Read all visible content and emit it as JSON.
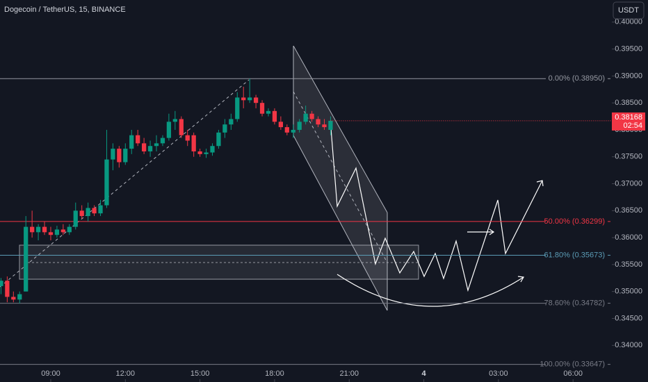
{
  "chart_data": {
    "type": "candlestick",
    "title": "Dogecoin / TetherUS, 15, BINANCE",
    "currency": "USDT",
    "countdown": "02:54",
    "up_color": "#089981",
    "down_color": "#f23645",
    "x": [
      7,
      7.25,
      7.5,
      7.75,
      8,
      8.25,
      8.5,
      8.75,
      9,
      9.25,
      9.5,
      9.75,
      10,
      10.25,
      10.5,
      10.75,
      11,
      11.25,
      11.5,
      11.75,
      12,
      12.25,
      12.5,
      12.75,
      13,
      13.25,
      13.5,
      13.75,
      14,
      14.25,
      14.5,
      14.75,
      15,
      15.25,
      15.5,
      15.75,
      16,
      16.25,
      16.5,
      16.75,
      17,
      17.25,
      17.5,
      17.75,
      18,
      18.25,
      18.5,
      18.75,
      19,
      19.25,
      19.5,
      19.75,
      20,
      20.25
    ],
    "series": [
      {
        "name": "open",
        "values": [
          0.351,
          0.352,
          0.349,
          0.3485,
          0.35,
          0.362,
          0.361,
          0.362,
          0.361,
          0.3605,
          0.3615,
          0.361,
          0.362,
          0.365,
          0.364,
          0.3655,
          0.3645,
          0.366,
          0.3745,
          0.3765,
          0.374,
          0.3765,
          0.379,
          0.3775,
          0.376,
          0.377,
          0.3775,
          0.3785,
          0.3815,
          0.382,
          0.379,
          0.379,
          0.376,
          0.3755,
          0.3758,
          0.377,
          0.3795,
          0.381,
          0.382,
          0.386,
          0.3855,
          0.386,
          0.385,
          0.383,
          0.3835,
          0.3815,
          0.3805,
          0.3795,
          0.38,
          0.3815,
          0.383,
          0.382,
          0.381,
          0.38
        ]
      },
      {
        "name": "high",
        "values": [
          0.3525,
          0.3528,
          0.35,
          0.35,
          0.364,
          0.365,
          0.3625,
          0.363,
          0.362,
          0.3622,
          0.3625,
          0.3625,
          0.3665,
          0.366,
          0.3665,
          0.366,
          0.367,
          0.38,
          0.3775,
          0.377,
          0.3775,
          0.38,
          0.38,
          0.3785,
          0.378,
          0.379,
          0.379,
          0.383,
          0.3835,
          0.3825,
          0.38,
          0.3795,
          0.3765,
          0.3765,
          0.3775,
          0.38,
          0.382,
          0.383,
          0.387,
          0.388,
          0.3895,
          0.3865,
          0.3855,
          0.384,
          0.384,
          0.3825,
          0.381,
          0.381,
          0.382,
          0.3845,
          0.3835,
          0.3825,
          0.382,
          0.3825
        ]
      },
      {
        "name": "low",
        "values": [
          0.3495,
          0.348,
          0.348,
          0.3478,
          0.35,
          0.36,
          0.3595,
          0.3605,
          0.3595,
          0.36,
          0.3605,
          0.3605,
          0.3615,
          0.3635,
          0.363,
          0.364,
          0.364,
          0.3655,
          0.3725,
          0.373,
          0.3735,
          0.3755,
          0.377,
          0.3755,
          0.375,
          0.376,
          0.377,
          0.378,
          0.38,
          0.3785,
          0.377,
          0.375,
          0.375,
          0.3748,
          0.3752,
          0.3765,
          0.3785,
          0.38,
          0.3815,
          0.384,
          0.385,
          0.384,
          0.3825,
          0.3825,
          0.381,
          0.38,
          0.379,
          0.3785,
          0.3795,
          0.381,
          0.3815,
          0.3805,
          0.38,
          0.379
        ]
      },
      {
        "name": "close",
        "values": [
          0.352,
          0.349,
          0.3485,
          0.3495,
          0.362,
          0.361,
          0.362,
          0.361,
          0.3605,
          0.3615,
          0.361,
          0.362,
          0.365,
          0.364,
          0.3655,
          0.3645,
          0.366,
          0.3745,
          0.3765,
          0.374,
          0.3765,
          0.379,
          0.3775,
          0.376,
          0.377,
          0.3775,
          0.3785,
          0.3815,
          0.382,
          0.379,
          0.378,
          0.376,
          0.3755,
          0.3758,
          0.377,
          0.3795,
          0.381,
          0.382,
          0.386,
          0.3855,
          0.386,
          0.385,
          0.383,
          0.3835,
          0.3815,
          0.3805,
          0.3795,
          0.38,
          0.3815,
          0.383,
          0.382,
          0.381,
          0.3805,
          0.38168
        ]
      }
    ],
    "xlim": [
      6.96,
      31.56
    ],
    "xticks": [
      {
        "value": 9,
        "label": "09:00"
      },
      {
        "value": 12,
        "label": "12:00"
      },
      {
        "value": 15,
        "label": "15:00"
      },
      {
        "value": 18,
        "label": "18:00"
      },
      {
        "value": 21,
        "label": "21:00"
      },
      {
        "value": 24,
        "label": "4"
      },
      {
        "value": 27,
        "label": "03:00"
      },
      {
        "value": 30,
        "label": "06:00"
      }
    ],
    "ylim": [
      0.3332,
      0.4041
    ],
    "yticks": [
      {
        "value": 0.34,
        "label": "0.34000"
      },
      {
        "value": 0.345,
        "label": "0.34500"
      },
      {
        "value": 0.35,
        "label": "0.35000"
      },
      {
        "value": 0.355,
        "label": "0.35500"
      },
      {
        "value": 0.36,
        "label": "0.36000"
      },
      {
        "value": 0.365,
        "label": "0.36500"
      },
      {
        "value": 0.37,
        "label": "0.37000"
      },
      {
        "value": 0.375,
        "label": "0.37500"
      },
      {
        "value": 0.38,
        "label": "0.38000"
      },
      {
        "value": 0.385,
        "label": "0.38500"
      },
      {
        "value": 0.39,
        "label": "0.39000"
      },
      {
        "value": 0.395,
        "label": "0.39500"
      },
      {
        "value": 0.4,
        "label": "0.40000"
      }
    ],
    "fib_levels": [
      {
        "value": 0.3895,
        "label": "0.00% (0.38950)",
        "color": "#9598a1"
      },
      {
        "value": 0.36299,
        "label": "50.00% (0.36299)",
        "color": "#f23645"
      },
      {
        "value": 0.35673,
        "label": "61.80% (0.35673)",
        "color": "#5b9cb6"
      },
      {
        "value": 0.34782,
        "label": "78.60% (0.34782)",
        "color": "#787b86"
      },
      {
        "value": 0.33647,
        "label": "100.00% (0.33647)",
        "color": "#787b86"
      }
    ]
  }
}
